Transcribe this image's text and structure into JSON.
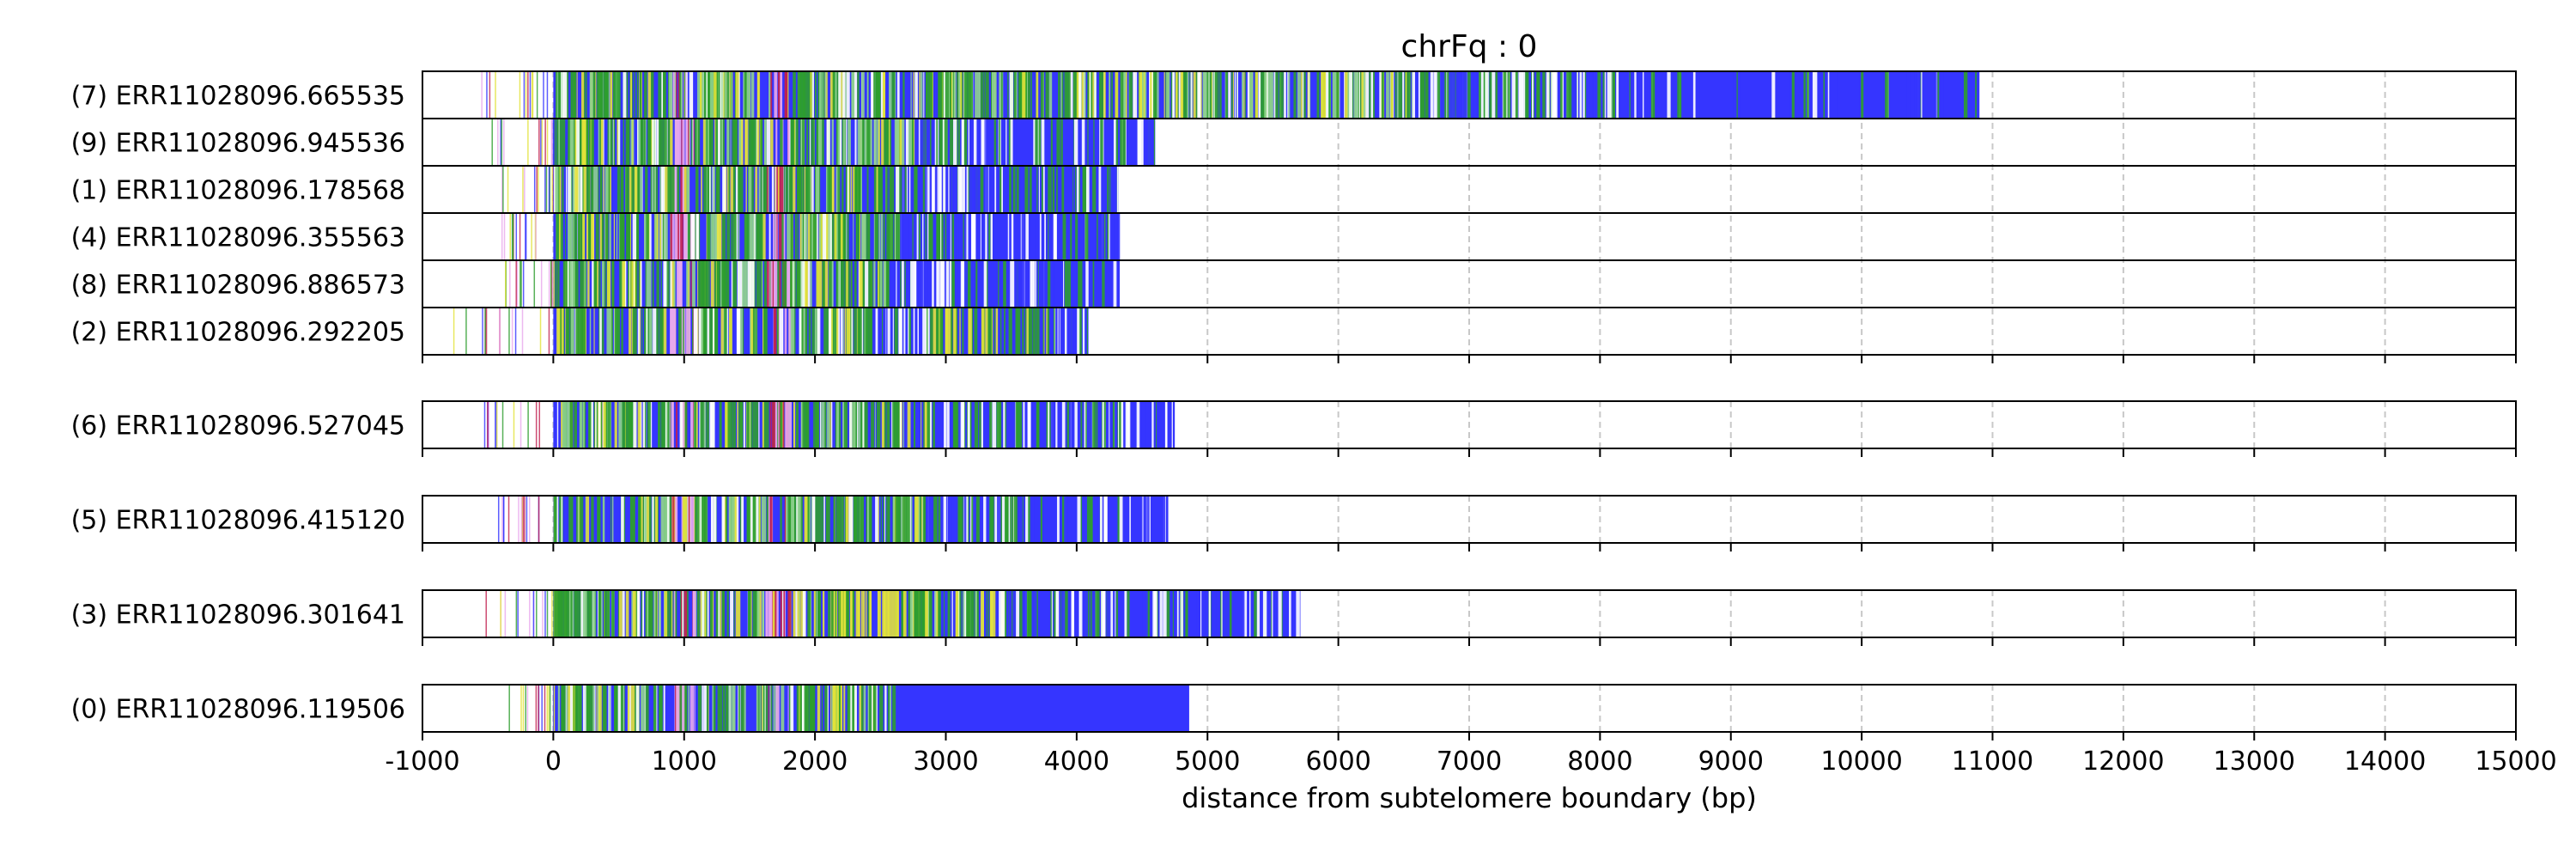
{
  "chart_data": {
    "type": "read-track-plot",
    "title": "chrFq : 0",
    "xlabel": "distance from subtelomere boundary (bp)",
    "ylabel": "",
    "xlim": [
      -1000,
      15000
    ],
    "xticks": [
      "-1000",
      "0",
      "1000",
      "2000",
      "3000",
      "4000",
      "5000",
      "6000",
      "7000",
      "8000",
      "9000",
      "10000",
      "11000",
      "12000",
      "13000",
      "14000",
      "15000"
    ],
    "grid": "vertical-dashed",
    "colors": {
      "blue": "#3535ff",
      "green": "#2e9e2e",
      "yellow": "#e2e23a",
      "pink": "#e8a8ec",
      "crimson": "#c02050",
      "grid": "#c8c8c8"
    },
    "groups": [
      {
        "reads": [
          {
            "label": "(7) ERR11028096.665535",
            "start": -620,
            "end": 10900
          },
          {
            "label": "(9) ERR11028096.945536",
            "start": -480,
            "end": 4600
          },
          {
            "label": "(1) ERR11028096.178568",
            "start": -400,
            "end": 4320
          },
          {
            "label": "(4) ERR11028096.355563",
            "start": -420,
            "end": 4320
          },
          {
            "label": "(8) ERR11028096.886573",
            "start": -520,
            "end": 4330
          },
          {
            "label": "(2) ERR11028096.292205",
            "start": -850,
            "end": 4090
          }
        ]
      },
      {
        "reads": [
          {
            "label": "(6) ERR11028096.527045",
            "start": -530,
            "end": 4750
          }
        ]
      },
      {
        "reads": [
          {
            "label": "(5) ERR11028096.415120",
            "start": -450,
            "end": 4700
          }
        ]
      },
      {
        "reads": [
          {
            "label": "(3) ERR11028096.301641",
            "start": -520,
            "end": 5710
          }
        ]
      },
      {
        "reads": [
          {
            "label": "(0) ERR11028096.119506",
            "start": -370,
            "end": 4860
          }
        ]
      }
    ]
  }
}
